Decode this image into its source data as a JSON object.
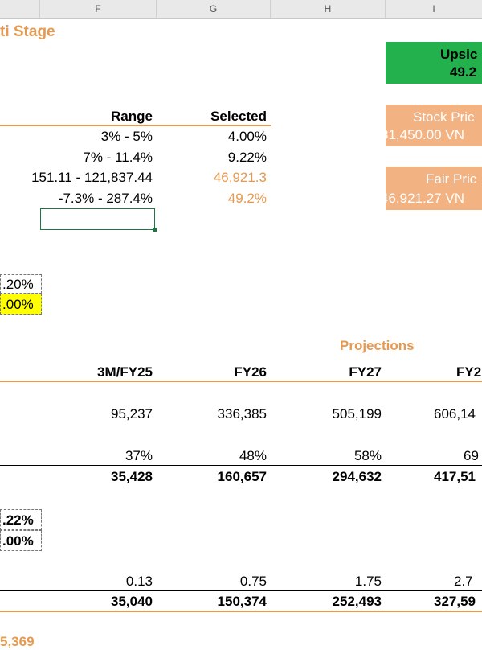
{
  "columns": [
    "F",
    "G",
    "H",
    "I"
  ],
  "title": "ti Stage",
  "summary": {
    "range_header": "Range",
    "selected_header": "Selected",
    "rows": [
      {
        "range": "3% - 5%",
        "selected": "4.00%"
      },
      {
        "range": "7% - 11.4%",
        "selected": "9.22%"
      },
      {
        "range": "151.11 - 121,837.44",
        "selected": "46,921.3"
      },
      {
        "range": "-7.3% - 287.4%",
        "selected": "49.2%"
      }
    ]
  },
  "upside": {
    "label": "Upsic",
    "value": "49.2"
  },
  "stock_price": {
    "label": "Stock Pric",
    "value": "31,450.00 VN"
  },
  "fair_price": {
    "label": "Fair Pric",
    "value": "46,921.27 VN"
  },
  "inputs_top": {
    "a": ".20%",
    "b": ".00%"
  },
  "inputs_mid": {
    "a": ".22%",
    "b": ".00%"
  },
  "projections_label": "Projections",
  "periods": [
    "3M/FY25",
    "FY26",
    "FY27",
    "FY2"
  ],
  "table": {
    "row1": [
      "95,237",
      "336,385",
      "505,199",
      "606,14"
    ],
    "row2": [
      "37%",
      "48%",
      "58%",
      "69"
    ],
    "row3": [
      "35,428",
      "160,657",
      "294,632",
      "417,51"
    ],
    "row4": [
      "0.13",
      "0.75",
      "1.75",
      "2.7"
    ],
    "row5": [
      "35,040",
      "150,374",
      "252,493",
      "327,59"
    ]
  },
  "bottom_partial": "5,369",
  "colors": {
    "accent": "#e59a51",
    "upside_green": "#22b14c",
    "highlight_yellow": "#ffff00"
  }
}
